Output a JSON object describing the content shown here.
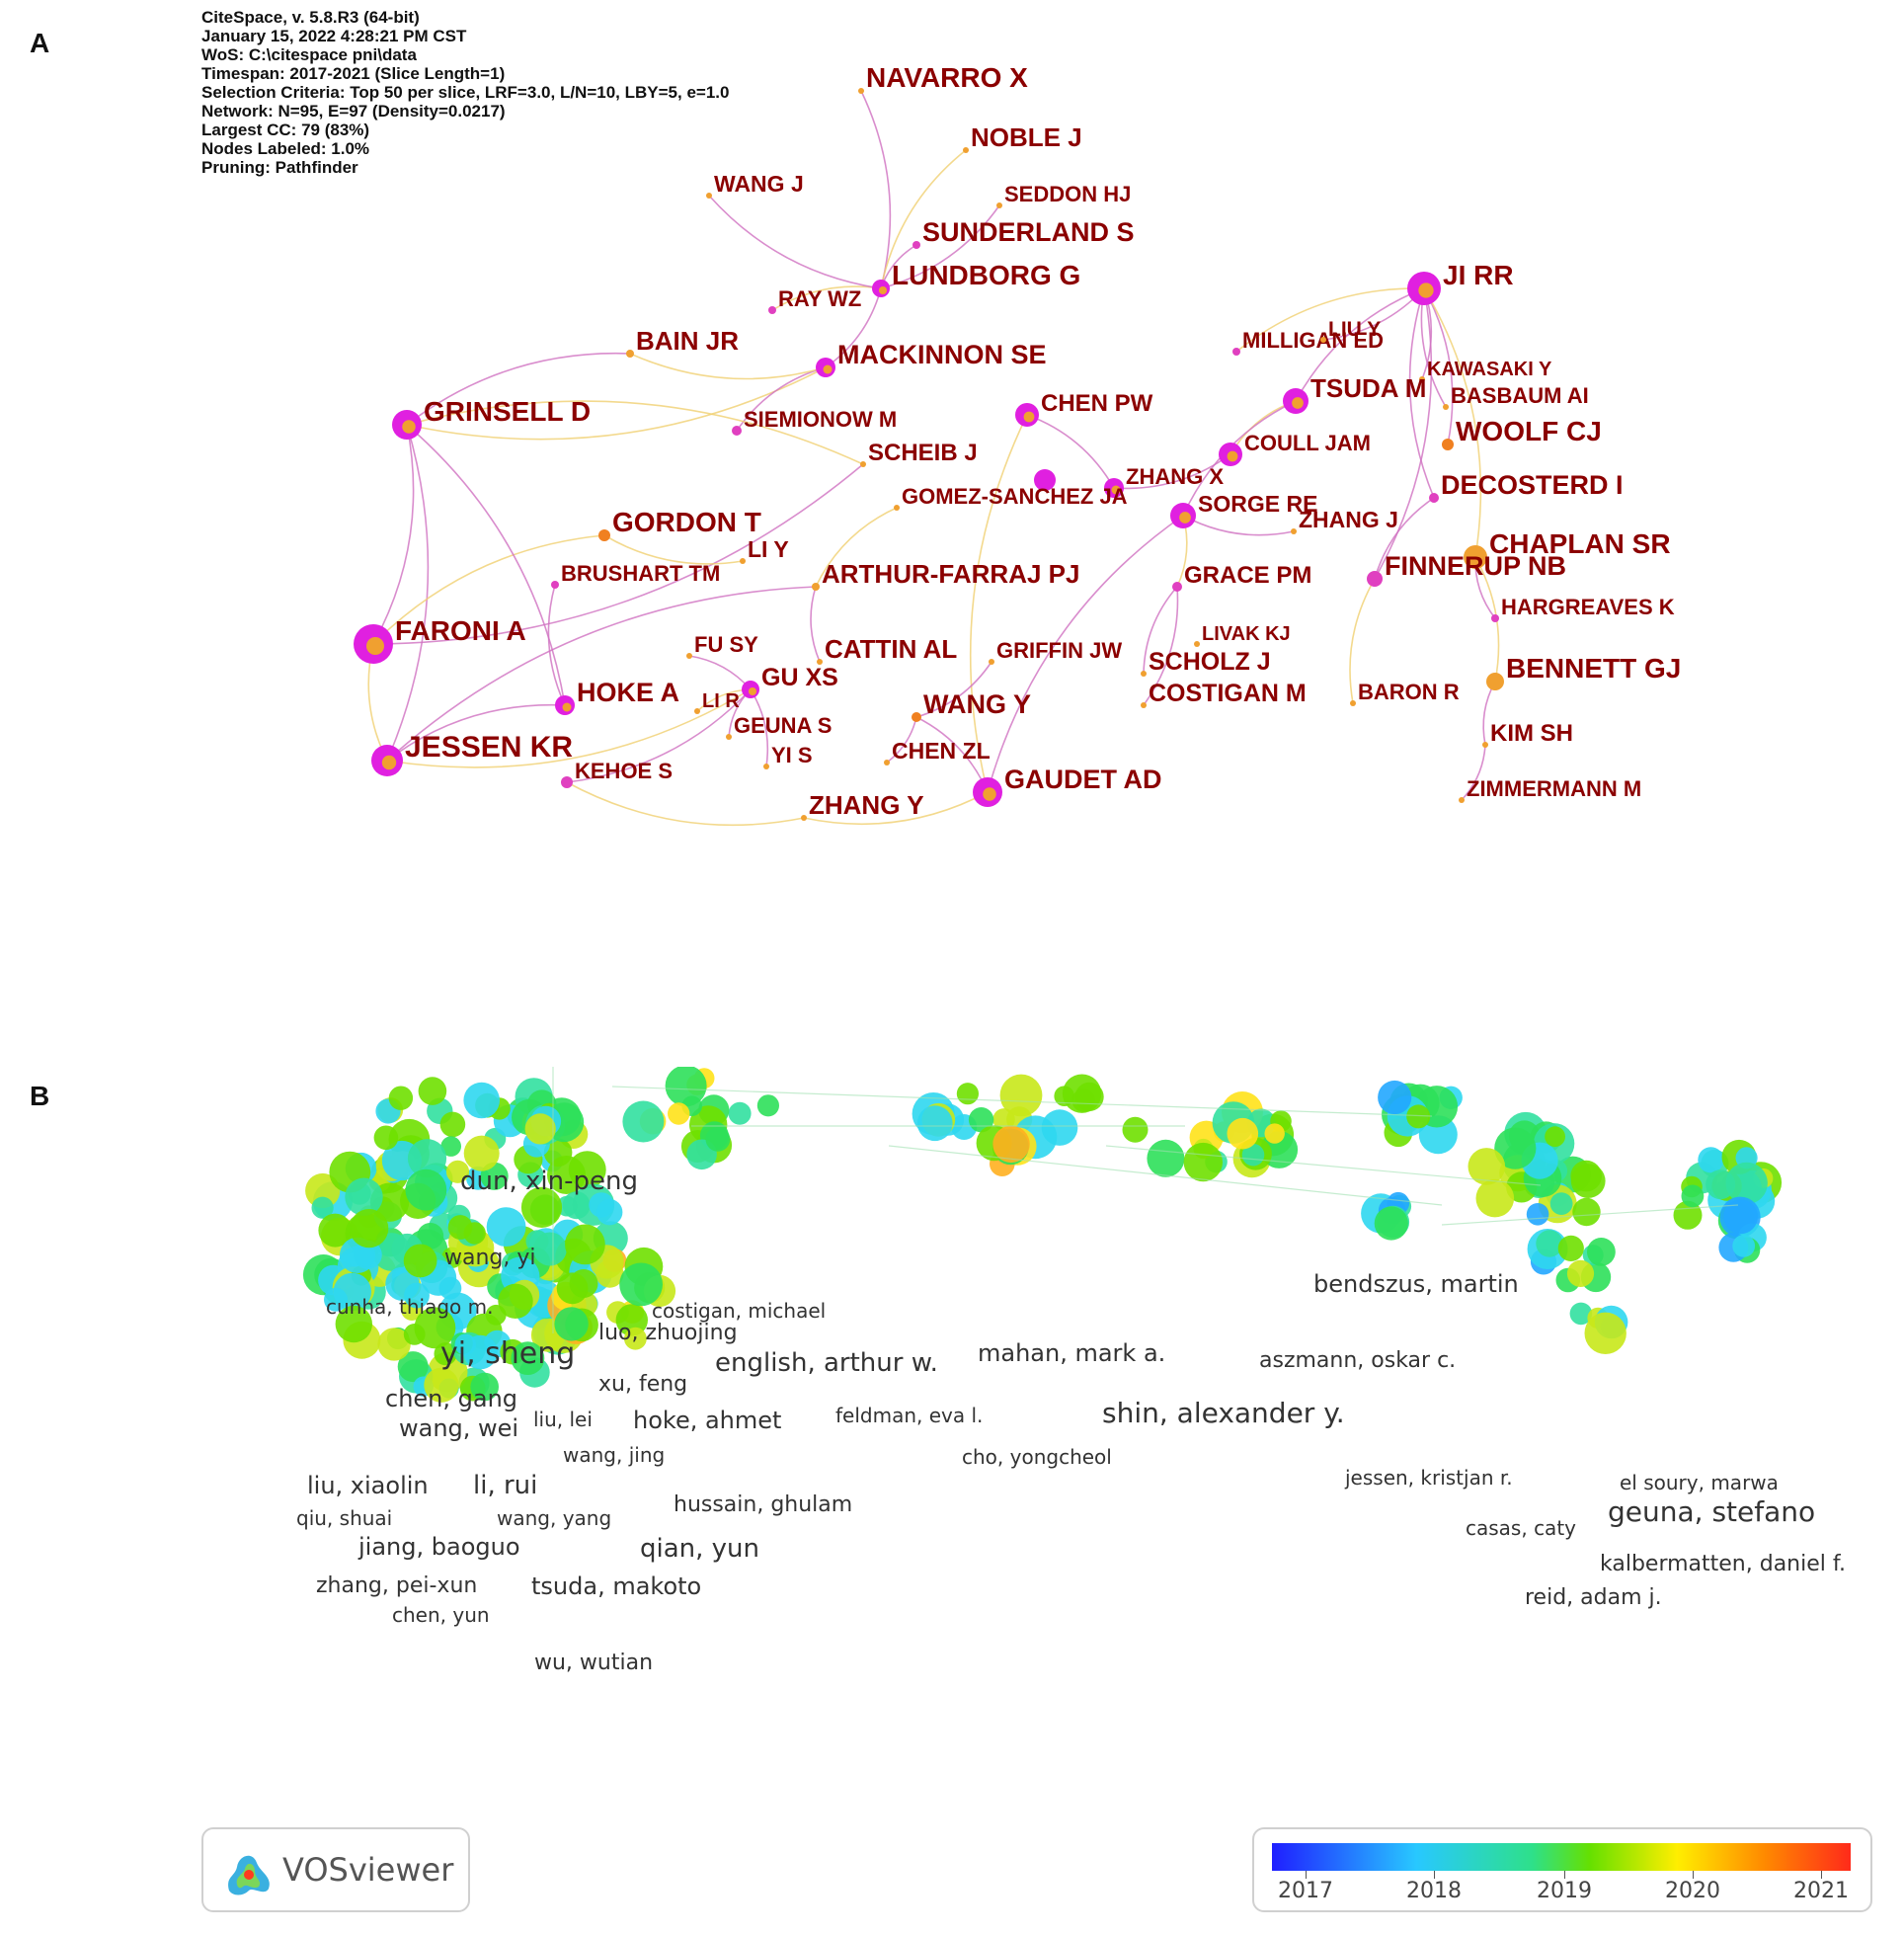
{
  "panels": {
    "a_label": "A",
    "b_label": "B"
  },
  "panel_a": {
    "info_lines": [
      "CiteSpace, v. 5.8.R3 (64-bit)",
      "January 15, 2022 4:28:21 PM CST",
      "WoS: C:\\citespace pni\\data",
      "Timespan: 2017-2021 (Slice Length=1)",
      "Selection Criteria: Top 50 per slice, LRF=3.0, L/N=10, LBY=5, e=1.0",
      "Network: N=95, E=97 (Density=0.0217)",
      "Largest CC: 79 (83%)",
      "Nodes Labeled: 1.0%",
      "Pruning: Pathfinder"
    ],
    "nodes": [
      {
        "label": "NAVARRO X"
      },
      {
        "label": "NOBLE J"
      },
      {
        "label": "SEDDON HJ"
      },
      {
        "label": "WANG J"
      },
      {
        "label": "SUNDERLAND S"
      },
      {
        "label": "LUNDBORG G"
      },
      {
        "label": "RAY WZ"
      },
      {
        "label": "JI RR"
      },
      {
        "label": "MILLIGAN ED"
      },
      {
        "label": "LIU Y"
      },
      {
        "label": "BAIN JR"
      },
      {
        "label": "MACKINNON SE"
      },
      {
        "label": "KAWASAKI Y"
      },
      {
        "label": "TSUDA M"
      },
      {
        "label": "BASBAUM AI"
      },
      {
        "label": "GRINSELL D"
      },
      {
        "label": "SIEMIONOW M"
      },
      {
        "label": "CHEN PW"
      },
      {
        "label": "WOOLF CJ"
      },
      {
        "label": "COULL JAM"
      },
      {
        "label": "SCHEIB J"
      },
      {
        "label": "ZHANG X"
      },
      {
        "label": "DECOSTERD I"
      },
      {
        "label": "GOMEZ-SANCHEZ JA"
      },
      {
        "label": "SORGE RE"
      },
      {
        "label": "GORDON T"
      },
      {
        "label": "ZHANG J"
      },
      {
        "label": "CHAPLAN SR"
      },
      {
        "label": "LI Y"
      },
      {
        "label": "BRUSHART TM"
      },
      {
        "label": "ARTHUR-FARRAJ PJ"
      },
      {
        "label": "GRACE PM"
      },
      {
        "label": "FINNERUP NB"
      },
      {
        "label": "HARGREAVES K"
      },
      {
        "label": "FARONI A"
      },
      {
        "label": "LIVAK KJ"
      },
      {
        "label": "FU SY"
      },
      {
        "label": "CATTIN AL"
      },
      {
        "label": "GRIFFIN JW"
      },
      {
        "label": "GU XS"
      },
      {
        "label": "SCHOLZ J"
      },
      {
        "label": "BENNETT GJ"
      },
      {
        "label": "HOKE A"
      },
      {
        "label": "LI R"
      },
      {
        "label": "WANG Y"
      },
      {
        "label": "COSTIGAN M"
      },
      {
        "label": "BARON R"
      },
      {
        "label": "GEUNA S"
      },
      {
        "label": "KIM SH"
      },
      {
        "label": "JESSEN KR"
      },
      {
        "label": "CHEN ZL"
      },
      {
        "label": "YI S"
      },
      {
        "label": "KEHOE S"
      },
      {
        "label": "GAUDET AD"
      },
      {
        "label": "ZIMMERMANN M"
      },
      {
        "label": "ZHANG Y"
      }
    ],
    "colors": {
      "label": "#8b0000",
      "node": "#e020e0",
      "edge_pink": "#d070c0",
      "edge_yellow": "#f0d070"
    }
  },
  "panel_b": {
    "nodes": [
      {
        "label": "dun, xin-peng"
      },
      {
        "label": "wang, yi"
      },
      {
        "label": "luo, zhuojing"
      },
      {
        "label": "cunha, thiago m."
      },
      {
        "label": "costigan, michael"
      },
      {
        "label": "yi, sheng"
      },
      {
        "label": "english, arthur w."
      },
      {
        "label": "mahan, mark a."
      },
      {
        "label": "bendszus, martin"
      },
      {
        "label": "aszmann, oskar c."
      },
      {
        "label": "xu, feng"
      },
      {
        "label": "chen, gang"
      },
      {
        "label": "liu, lei"
      },
      {
        "label": "hoke, ahmet"
      },
      {
        "label": "feldman, eva l."
      },
      {
        "label": "shin, alexander y."
      },
      {
        "label": "wang, wei"
      },
      {
        "label": "wang, jing"
      },
      {
        "label": "cho, yongcheol"
      },
      {
        "label": "jessen, kristjan r."
      },
      {
        "label": "el soury, marwa"
      },
      {
        "label": "liu, xiaolin"
      },
      {
        "label": "li, rui"
      },
      {
        "label": "hussain, ghulam"
      },
      {
        "label": "geuna, stefano"
      },
      {
        "label": "qiu, shuai"
      },
      {
        "label": "wang, yang"
      },
      {
        "label": "casas, caty"
      },
      {
        "label": "jiang, baoguo"
      },
      {
        "label": "qian, yun"
      },
      {
        "label": "kalbermatten, daniel f."
      },
      {
        "label": "zhang, pei-xun"
      },
      {
        "label": "tsuda, makoto"
      },
      {
        "label": "reid, adam j."
      },
      {
        "label": "chen, yun"
      },
      {
        "label": "wu, wutian"
      }
    ],
    "logo_text": "VOSviewer",
    "legend": {
      "ticks": [
        "2017",
        "2018",
        "2019",
        "2020",
        "2021"
      ],
      "colors": [
        "#1f1fff",
        "#28c8ff",
        "#2ee08a",
        "#66e000",
        "#ffee00",
        "#ff8a00",
        "#ff2a1a"
      ]
    }
  }
}
